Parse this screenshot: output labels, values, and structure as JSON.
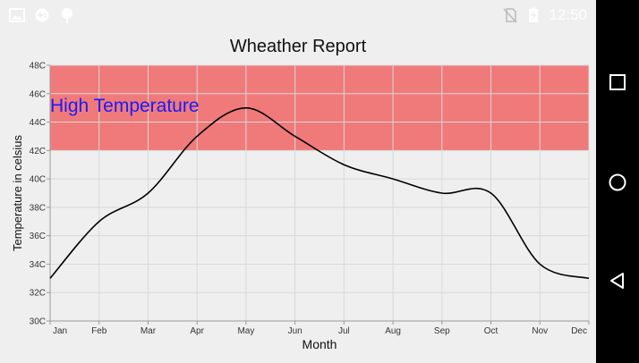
{
  "status": {
    "time": "12:50",
    "left_icons": [
      "image-icon",
      "gamepad-icon",
      "pin-icon"
    ],
    "right_icons": [
      "no-sim-icon",
      "battery-charging-icon"
    ]
  },
  "navigation": {
    "buttons": [
      "recent-apps-button",
      "home-button",
      "back-button"
    ]
  },
  "colors": {
    "band": "#f07a7a",
    "band_label": "#1a1aff",
    "line": "#000000",
    "grid": "#d8d8d8",
    "background": "#efefef"
  },
  "chart_data": {
    "type": "line",
    "title": "Wheather Report",
    "xlabel": "Month",
    "ylabel": "Temperature in celsius",
    "categories": [
      "Jan",
      "Feb",
      "Mar",
      "Apr",
      "May",
      "Jun",
      "Jul",
      "Aug",
      "Sep",
      "Oct",
      "Nov",
      "Dec"
    ],
    "values": [
      33,
      37,
      39,
      43,
      45,
      43,
      41,
      40,
      39,
      39,
      34,
      33
    ],
    "ylim": [
      30,
      48
    ],
    "y_ticks": [
      "30C",
      "32C",
      "34C",
      "36C",
      "38C",
      "40C",
      "42C",
      "44C",
      "46C",
      "48C"
    ],
    "grid": true,
    "curve": "smooth",
    "band": {
      "label": "High Temperature",
      "from": 42,
      "to": 48
    }
  }
}
